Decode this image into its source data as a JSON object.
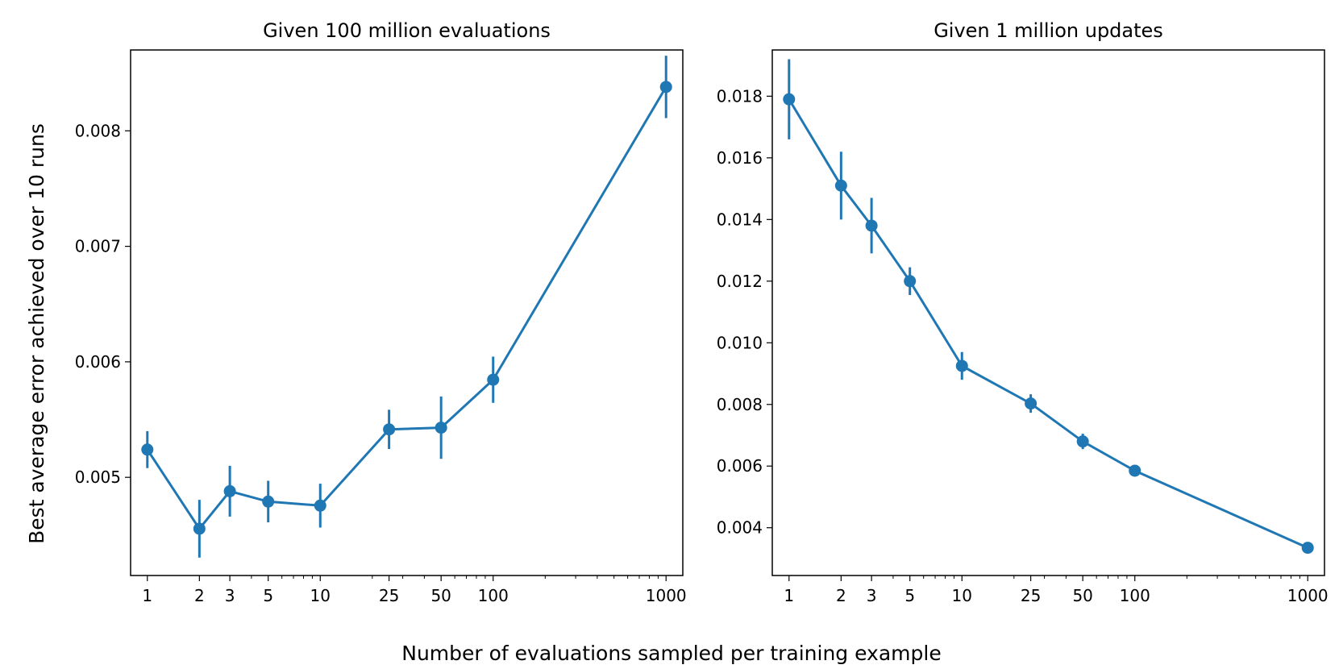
{
  "figure": {
    "ylabel": "Best average error achieved over 10 runs",
    "xlabel": "Number of evaluations sampled per training example"
  },
  "chart_data": [
    {
      "type": "line",
      "title": "Given 100 million evaluations",
      "xscale": "log",
      "xlim": [
        0.8,
        1250
      ],
      "ylim": [
        0.00415,
        0.0087
      ],
      "xticks": [
        1,
        2,
        3,
        5,
        10,
        25,
        50,
        100,
        1000
      ],
      "xtick_labels": [
        "1",
        "2",
        "3",
        "5",
        "10",
        "25",
        "50",
        "100",
        "1000"
      ],
      "yticks": [
        0.005,
        0.006,
        0.007,
        0.008
      ],
      "ytick_labels": [
        "0.005",
        "0.006",
        "0.007",
        "0.008"
      ],
      "color": "#1f77b4",
      "x": [
        1,
        2,
        3,
        5,
        10,
        25,
        50,
        100,
        1000
      ],
      "y": [
        0.00524,
        0.004555,
        0.00488,
        0.00479,
        0.004755,
        0.005415,
        0.00543,
        0.005845,
        0.00838
      ],
      "err": [
        0.00016,
        0.00025,
        0.00022,
        0.00018,
        0.00019,
        0.00017,
        0.00027,
        0.0002,
        0.00027
      ]
    },
    {
      "type": "line",
      "title": "Given 1 million updates",
      "xscale": "log",
      "xlim": [
        0.8,
        1250
      ],
      "ylim": [
        0.00245,
        0.0195
      ],
      "xticks": [
        1,
        2,
        3,
        5,
        10,
        25,
        50,
        100,
        1000
      ],
      "xtick_labels": [
        "1",
        "2",
        "3",
        "5",
        "10",
        "25",
        "50",
        "100",
        "1000"
      ],
      "yticks": [
        0.004,
        0.006,
        0.008,
        0.01,
        0.012,
        0.014,
        0.016,
        0.018
      ],
      "ytick_labels": [
        "0.004",
        "0.006",
        "0.008",
        "0.010",
        "0.012",
        "0.014",
        "0.016",
        "0.018"
      ],
      "color": "#1f77b4",
      "x": [
        1,
        2,
        3,
        5,
        10,
        25,
        50,
        100,
        1000
      ],
      "y": [
        0.0179,
        0.0151,
        0.0138,
        0.012,
        0.00925,
        0.00803,
        0.0068,
        0.00585,
        0.00335
      ],
      "err": [
        0.0013,
        0.0011,
        0.0009,
        0.00045,
        0.00045,
        0.0003,
        0.00025,
        0.00012,
        0.0001
      ]
    }
  ]
}
